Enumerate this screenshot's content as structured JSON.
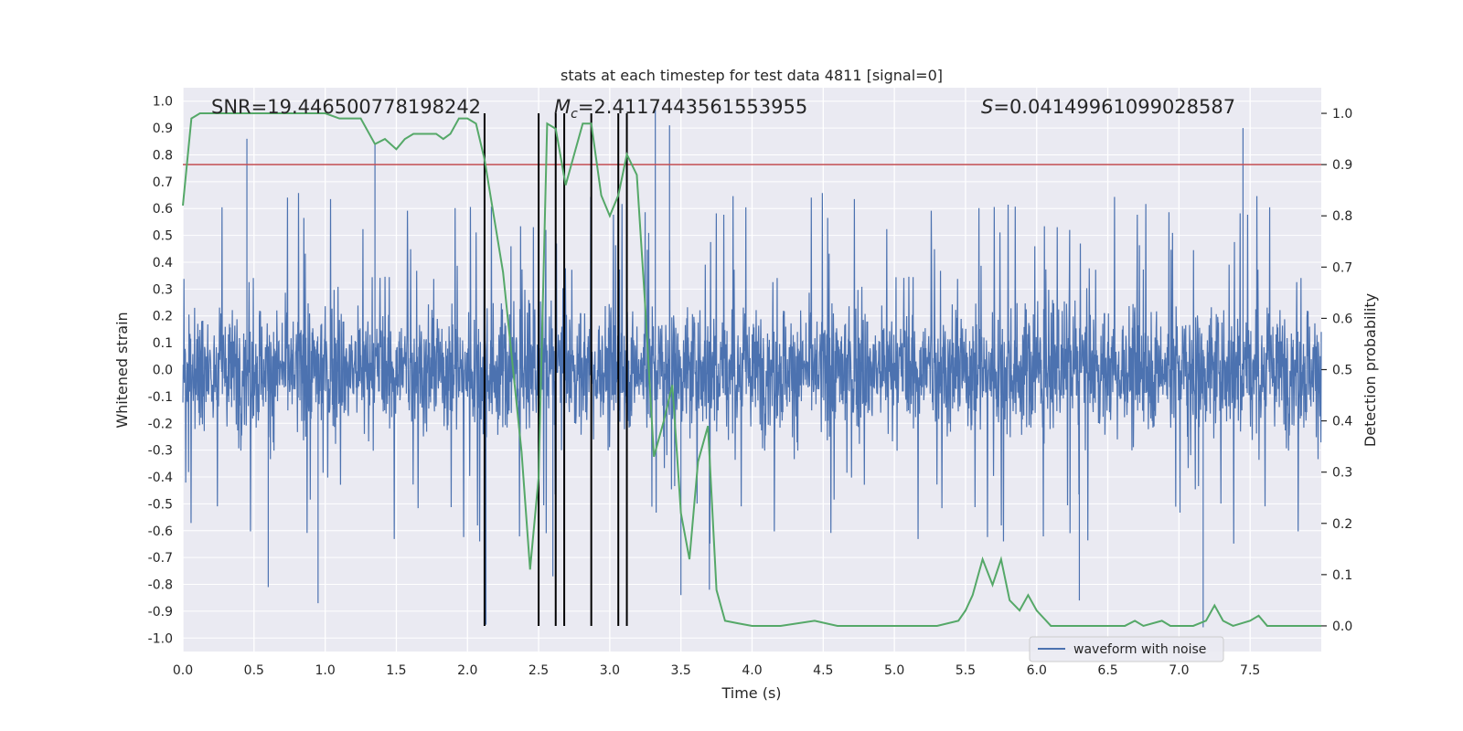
{
  "chart_data": {
    "type": "line",
    "title": "stats at each timestep for test data 4811 [signal=0]",
    "xlabel": "Time (s)",
    "ylabel_left": "Whitened strain",
    "ylabel_right": "Detection probability",
    "xlim": [
      0.0,
      8.0
    ],
    "ylim_left": [
      -1.05,
      1.05
    ],
    "ylim_right": [
      -0.05,
      1.05
    ],
    "x_ticks": [
      "0.0",
      "0.5",
      "1.0",
      "1.5",
      "2.0",
      "2.5",
      "3.0",
      "3.5",
      "4.0",
      "4.5",
      "5.0",
      "5.5",
      "6.0",
      "6.5",
      "7.0",
      "7.5"
    ],
    "left_ticks": [
      "1.0",
      "0.9",
      "0.8",
      "0.7",
      "0.6",
      "0.5",
      "0.4",
      "0.3",
      "0.2",
      "0.1",
      "0.0",
      "-0.1",
      "-0.2",
      "-0.3",
      "-0.4",
      "-0.5",
      "-0.6",
      "-0.7",
      "-0.8",
      "-0.9",
      "-1.0"
    ],
    "right_ticks": [
      "1.0",
      "0.9",
      "0.8",
      "0.7",
      "0.6",
      "0.5",
      "0.4",
      "0.3",
      "0.2",
      "0.1",
      "0.0"
    ],
    "grid": true,
    "legend": {
      "position": "bottom-right",
      "entries": [
        "waveform with noise"
      ]
    },
    "annotations": {
      "snr": "SNR=19.446500778198242",
      "mc_symbol": "M",
      "mc_sub": "c",
      "mc_value": "=2.4117443561553955",
      "s_symbol": "S",
      "s_value": "=0.04149961099028587"
    },
    "threshold": {
      "axis": "right",
      "value": 0.9,
      "color": "#c44e52"
    },
    "vertical_markers": [
      2.12,
      2.5,
      2.62,
      2.68,
      2.87,
      3.06,
      3.12
    ],
    "series": [
      {
        "name": "waveform with noise",
        "axis": "left",
        "color": "#4c72b0",
        "kind": "noise",
        "envelope_amplitude": 0.6,
        "peaks": [
          [
            0.45,
            0.86
          ],
          [
            1.35,
            0.84
          ],
          [
            3.32,
            0.98
          ],
          [
            3.42,
            0.91
          ],
          [
            7.45,
            0.9
          ],
          [
            7.17,
            -0.96
          ],
          [
            2.13,
            -0.95
          ],
          [
            2.6,
            -0.77
          ],
          [
            0.95,
            -0.87
          ],
          [
            3.5,
            -0.84
          ],
          [
            6.3,
            -0.86
          ],
          [
            0.6,
            -0.81
          ],
          [
            3.7,
            -0.82
          ]
        ]
      },
      {
        "axis": "right",
        "color": "#55a868",
        "kind": "line",
        "x": [
          0.0,
          0.06,
          0.12,
          0.25,
          0.5,
          0.75,
          1.0,
          1.1,
          1.25,
          1.35,
          1.42,
          1.5,
          1.56,
          1.62,
          1.7,
          1.78,
          1.83,
          1.88,
          1.94,
          2.0,
          2.06,
          2.12,
          2.25,
          2.38,
          2.44,
          2.5,
          2.56,
          2.62,
          2.69,
          2.75,
          2.81,
          2.87,
          2.94,
          3.0,
          3.06,
          3.12,
          3.19,
          3.25,
          3.31,
          3.38,
          3.44,
          3.5,
          3.56,
          3.62,
          3.69,
          3.75,
          3.81,
          3.9,
          4.0,
          4.2,
          4.44,
          4.6,
          5.0,
          5.3,
          5.45,
          5.5,
          5.55,
          5.62,
          5.69,
          5.75,
          5.81,
          5.88,
          5.94,
          6.0,
          6.1,
          6.3,
          6.5,
          6.62,
          6.69,
          6.75,
          6.88,
          6.94,
          7.0,
          7.1,
          7.19,
          7.25,
          7.31,
          7.38,
          7.5,
          7.56,
          7.62,
          7.75,
          7.9,
          8.0
        ],
        "y": [
          0.82,
          0.99,
          1.0,
          1.0,
          1.0,
          1.0,
          1.0,
          0.99,
          0.99,
          0.94,
          0.95,
          0.93,
          0.95,
          0.96,
          0.96,
          0.96,
          0.95,
          0.96,
          0.99,
          0.99,
          0.98,
          0.91,
          0.69,
          0.34,
          0.11,
          0.29,
          0.98,
          0.97,
          0.86,
          0.92,
          0.98,
          0.98,
          0.84,
          0.8,
          0.84,
          0.92,
          0.88,
          0.62,
          0.33,
          0.4,
          0.47,
          0.22,
          0.13,
          0.32,
          0.39,
          0.07,
          0.01,
          0.005,
          0.0,
          0.0,
          0.01,
          0.0,
          0.0,
          0.0,
          0.01,
          0.03,
          0.06,
          0.13,
          0.08,
          0.13,
          0.05,
          0.03,
          0.06,
          0.03,
          0.0,
          0.0,
          0.0,
          0.0,
          0.01,
          0.0,
          0.01,
          0.0,
          0.0,
          0.0,
          0.01,
          0.04,
          0.01,
          0.0,
          0.01,
          0.02,
          0.0,
          0.0,
          0.0,
          0.0
        ]
      }
    ]
  }
}
